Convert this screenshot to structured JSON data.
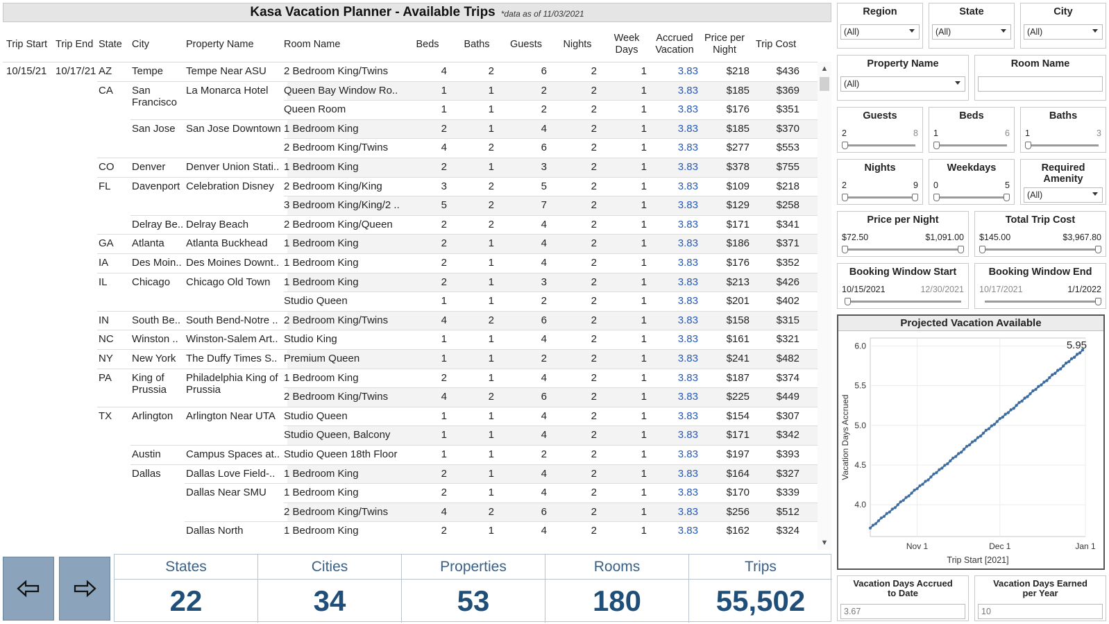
{
  "title": "Kasa Vacation Planner - Available Trips",
  "title_note": "*data as of 11/03/2021",
  "columns": {
    "trip_start": "Trip Start",
    "trip_end": "Trip End",
    "state": "State",
    "city": "City",
    "property": "Property Name",
    "room": "Room Name",
    "beds": "Beds",
    "baths": "Baths",
    "guests": "Guests",
    "nights": "Nights",
    "week_days_1": "Week",
    "week_days_2": "Days",
    "accrued_1": "Accrued",
    "accrued_2": "Vacation",
    "price_1": "Price per",
    "price_2": "Night",
    "trip_cost": "Trip Cost"
  },
  "rows": [
    {
      "trip_start": "10/15/21",
      "trip_end": "10/17/21",
      "state": "AZ",
      "city": "Tempe",
      "property": "Tempe Near ASU",
      "room": "2 Bedroom King/Twins",
      "beds": "4",
      "baths": "2",
      "guests": "6",
      "nights": "2",
      "week_days": "1",
      "accrued": "3.83",
      "price": "$218",
      "cost": "$436"
    },
    {
      "state": "CA",
      "city": "San Francisco",
      "property": "La Monarca Hotel",
      "room": "Queen Bay Window Ro..",
      "beds": "1",
      "baths": "1",
      "guests": "2",
      "nights": "2",
      "week_days": "1",
      "accrued": "3.83",
      "price": "$185",
      "cost": "$369"
    },
    {
      "room": "Queen Room",
      "beds": "1",
      "baths": "1",
      "guests": "2",
      "nights": "2",
      "week_days": "1",
      "accrued": "3.83",
      "price": "$176",
      "cost": "$351"
    },
    {
      "city": "San Jose",
      "property": "San Jose Downtown",
      "room": "1 Bedroom King",
      "beds": "2",
      "baths": "1",
      "guests": "4",
      "nights": "2",
      "week_days": "1",
      "accrued": "3.83",
      "price": "$185",
      "cost": "$370"
    },
    {
      "room": "2 Bedroom King/Twins",
      "beds": "4",
      "baths": "2",
      "guests": "6",
      "nights": "2",
      "week_days": "1",
      "accrued": "3.83",
      "price": "$277",
      "cost": "$553"
    },
    {
      "state": "CO",
      "city": "Denver",
      "property": "Denver Union Stati..",
      "room": "1 Bedroom King",
      "beds": "2",
      "baths": "1",
      "guests": "3",
      "nights": "2",
      "week_days": "1",
      "accrued": "3.83",
      "price": "$378",
      "cost": "$755"
    },
    {
      "state": "FL",
      "city": "Davenport",
      "property": "Celebration Disney",
      "room": "2 Bedroom King/King",
      "beds": "3",
      "baths": "2",
      "guests": "5",
      "nights": "2",
      "week_days": "1",
      "accrued": "3.83",
      "price": "$109",
      "cost": "$218"
    },
    {
      "room": "3 Bedroom King/King/2 ..",
      "beds": "5",
      "baths": "2",
      "guests": "7",
      "nights": "2",
      "week_days": "1",
      "accrued": "3.83",
      "price": "$129",
      "cost": "$258"
    },
    {
      "city": "Delray Be..",
      "property": "Delray Beach",
      "room": "2 Bedroom King/Queen",
      "beds": "2",
      "baths": "2",
      "guests": "4",
      "nights": "2",
      "week_days": "1",
      "accrued": "3.83",
      "price": "$171",
      "cost": "$341"
    },
    {
      "state": "GA",
      "city": "Atlanta",
      "property": "Atlanta Buckhead",
      "room": "1 Bedroom King",
      "beds": "2",
      "baths": "1",
      "guests": "4",
      "nights": "2",
      "week_days": "1",
      "accrued": "3.83",
      "price": "$186",
      "cost": "$371"
    },
    {
      "state": "IA",
      "city": "Des Moin..",
      "property": "Des Moines Downt..",
      "room": "1 Bedroom King",
      "beds": "2",
      "baths": "1",
      "guests": "4",
      "nights": "2",
      "week_days": "1",
      "accrued": "3.83",
      "price": "$176",
      "cost": "$352"
    },
    {
      "state": "IL",
      "city": "Chicago",
      "property": "Chicago Old Town",
      "room": "1 Bedroom King",
      "beds": "2",
      "baths": "1",
      "guests": "3",
      "nights": "2",
      "week_days": "1",
      "accrued": "3.83",
      "price": "$213",
      "cost": "$426"
    },
    {
      "room": "Studio Queen",
      "beds": "1",
      "baths": "1",
      "guests": "2",
      "nights": "2",
      "week_days": "1",
      "accrued": "3.83",
      "price": "$201",
      "cost": "$402"
    },
    {
      "state": "IN",
      "city": "South Be..",
      "property": "South Bend-Notre ..",
      "room": "2 Bedroom King/Twins",
      "beds": "4",
      "baths": "2",
      "guests": "6",
      "nights": "2",
      "week_days": "1",
      "accrued": "3.83",
      "price": "$158",
      "cost": "$315"
    },
    {
      "state": "NC",
      "city": "Winston ..",
      "property": "Winston-Salem Art..",
      "room": "Studio King",
      "beds": "1",
      "baths": "1",
      "guests": "4",
      "nights": "2",
      "week_days": "1",
      "accrued": "3.83",
      "price": "$161",
      "cost": "$321"
    },
    {
      "state": "NY",
      "city": "New York",
      "property": "The Duffy Times S..",
      "room": "Premium Queen",
      "beds": "1",
      "baths": "1",
      "guests": "2",
      "nights": "2",
      "week_days": "1",
      "accrued": "3.83",
      "price": "$241",
      "cost": "$482"
    },
    {
      "state": "PA",
      "city": "King of Prussia",
      "property": "Philadelphia King of Prussia",
      "room": "1 Bedroom King",
      "beds": "2",
      "baths": "1",
      "guests": "4",
      "nights": "2",
      "week_days": "1",
      "accrued": "3.83",
      "price": "$187",
      "cost": "$374"
    },
    {
      "room": "2 Bedroom King/Twins",
      "beds": "4",
      "baths": "2",
      "guests": "6",
      "nights": "2",
      "week_days": "1",
      "accrued": "3.83",
      "price": "$225",
      "cost": "$449"
    },
    {
      "state": "TX",
      "city": "Arlington",
      "property": "Arlington Near UTA",
      "room": "Studio Queen",
      "beds": "1",
      "baths": "1",
      "guests": "4",
      "nights": "2",
      "week_days": "1",
      "accrued": "3.83",
      "price": "$154",
      "cost": "$307"
    },
    {
      "room": "Studio Queen, Balcony",
      "beds": "1",
      "baths": "1",
      "guests": "4",
      "nights": "2",
      "week_days": "1",
      "accrued": "3.83",
      "price": "$171",
      "cost": "$342"
    },
    {
      "city": "Austin",
      "property": "Campus Spaces at..",
      "room": "Studio Queen 18th Floor",
      "beds": "1",
      "baths": "1",
      "guests": "2",
      "nights": "2",
      "week_days": "1",
      "accrued": "3.83",
      "price": "$197",
      "cost": "$393"
    },
    {
      "city": "Dallas",
      "property": "Dallas Love Field-..",
      "room": "1 Bedroom King",
      "beds": "2",
      "baths": "1",
      "guests": "4",
      "nights": "2",
      "week_days": "1",
      "accrued": "3.83",
      "price": "$164",
      "cost": "$327"
    },
    {
      "property": "Dallas Near SMU",
      "room": "1 Bedroom King",
      "beds": "2",
      "baths": "1",
      "guests": "4",
      "nights": "2",
      "week_days": "1",
      "accrued": "3.83",
      "price": "$170",
      "cost": "$339"
    },
    {
      "room": "2 Bedroom King/Twins",
      "beds": "4",
      "baths": "2",
      "guests": "6",
      "nights": "2",
      "week_days": "1",
      "accrued": "3.83",
      "price": "$256",
      "cost": "$512"
    },
    {
      "property": "Dallas North",
      "room": "1 Bedroom King",
      "beds": "2",
      "baths": "1",
      "guests": "4",
      "nights": "2",
      "week_days": "1",
      "accrued": "3.83",
      "price": "$162",
      "cost": "$324"
    }
  ],
  "kpis": [
    {
      "label": "States",
      "value": "22"
    },
    {
      "label": "Cities",
      "value": "34"
    },
    {
      "label": "Properties",
      "value": "53"
    },
    {
      "label": "Rooms",
      "value": "180"
    },
    {
      "label": "Trips",
      "value": "55,502"
    }
  ],
  "nav": {
    "prev_icon": "arrow-left-icon",
    "next_icon": "arrow-right-icon"
  },
  "filters": {
    "region": {
      "label": "Region",
      "value": "(All)"
    },
    "state": {
      "label": "State",
      "value": "(All)"
    },
    "city": {
      "label": "City",
      "value": "(All)"
    },
    "property_name": {
      "label": "Property Name",
      "value": "(All)"
    },
    "room_name": {
      "label": "Room Name",
      "value": ""
    },
    "guests": {
      "label": "Guests",
      "min": "2",
      "max": "8"
    },
    "beds": {
      "label": "Beds",
      "min": "1",
      "max": "6"
    },
    "baths": {
      "label": "Baths",
      "min": "1",
      "max": "3"
    },
    "nights": {
      "label": "Nights",
      "min": "2",
      "max": "9"
    },
    "weekdays": {
      "label": "Weekdays",
      "min": "0",
      "max": "5"
    },
    "required_amenity": {
      "label_1": "Required",
      "label_2": "Amenity",
      "value": "(All)"
    },
    "price_per_night": {
      "label": "Price per Night",
      "min": "$72.50",
      "max": "$1,091.00"
    },
    "total_trip_cost": {
      "label": "Total Trip Cost",
      "min": "$145.00",
      "max": "$3,967.80"
    },
    "booking_start": {
      "label": "Booking Window Start",
      "min": "10/15/2021",
      "max": "12/30/2021"
    },
    "booking_end": {
      "label": "Booking Window End",
      "min": "10/17/2021",
      "max": "1/1/2022"
    },
    "accrued_to_date": {
      "label_1": "Vacation Days Accrued",
      "label_2": "to Date",
      "value": "3.67"
    },
    "earned_per_year": {
      "label_1": "Vacation Days Earned",
      "label_2": "per Year",
      "value": "10"
    }
  },
  "chart_data": {
    "type": "line",
    "title": "Projected Vacation Available",
    "xlabel": "Trip Start [2021]",
    "ylabel": "Vacation Days Accrued",
    "x_start": "2021-10-15",
    "x_end": "2021-12-31",
    "x_ticks": [
      {
        "date": "2021-11-01",
        "label": "Nov 1"
      },
      {
        "date": "2021-12-01",
        "label": "Dec 1"
      },
      {
        "date": "2022-01-01",
        "label": "Jan 1"
      }
    ],
    "y_ticks": [
      "4.0",
      "4.5",
      "5.0",
      "5.5",
      "6.0"
    ],
    "ylim": [
      3.6,
      6.1
    ],
    "start_value": 3.71,
    "end_value": 5.95,
    "end_label": "5.95",
    "grid": true,
    "color": "#3b6b9e"
  }
}
